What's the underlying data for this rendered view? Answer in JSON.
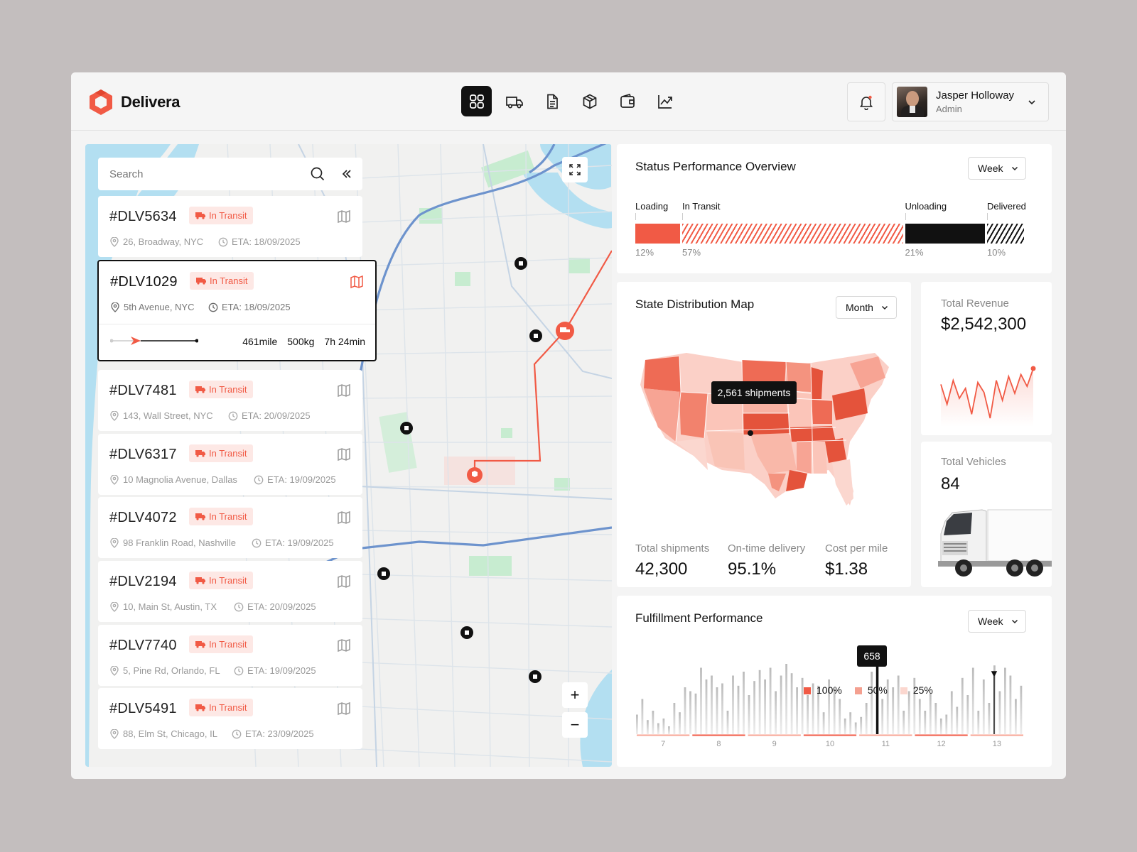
{
  "app": {
    "name": "Delivera"
  },
  "nav": {
    "items": [
      "dashboard-icon",
      "truck-icon",
      "document-icon",
      "package-icon",
      "wallet-icon",
      "chart-icon"
    ],
    "active": 0
  },
  "user": {
    "name": "Jasper Holloway",
    "role": "Admin"
  },
  "search": {
    "placeholder": "Search"
  },
  "deliveries": [
    {
      "id": "#DLV5634",
      "status": "In Transit",
      "address": "26, Broadway, NYC",
      "eta": "ETA: 18/09/2025"
    },
    {
      "id": "#DLV1029",
      "status": "In Transit",
      "address": "5th Avenue, NYC",
      "eta": "ETA: 18/09/2025",
      "distance": "461mile",
      "weight": "500kg",
      "duration": "7h 24min",
      "progress": 0.35
    },
    {
      "id": "#DLV7481",
      "status": "In Transit",
      "address": "143, Wall Street, NYC",
      "eta": "ETA: 20/09/2025"
    },
    {
      "id": "#DLV6317",
      "status": "In Transit",
      "address": "10 Magnolia Avenue, Dallas",
      "eta": "ETA: 19/09/2025"
    },
    {
      "id": "#DLV4072",
      "status": "In Transit",
      "address": "98 Franklin Road, Nashville",
      "eta": "ETA: 19/09/2025"
    },
    {
      "id": "#DLV2194",
      "status": "In Transit",
      "address": "10, Main St, Austin, TX",
      "eta": "ETA: 20/09/2025"
    },
    {
      "id": "#DLV7740",
      "status": "In Transit",
      "address": "5, Pine Rd, Orlando, FL",
      "eta": "ETA: 19/09/2025"
    },
    {
      "id": "#DLV5491",
      "status": "In Transit",
      "address": "88, Elm St, Chicago, IL",
      "eta": "ETA: 23/09/2025"
    }
  ],
  "status_overview": {
    "title": "Status Performance Overview",
    "period": "Week",
    "stages": [
      {
        "label": "Loading",
        "pct": "12%",
        "value": 12,
        "color": "#f15a45"
      },
      {
        "label": "In Transit",
        "pct": "57%",
        "value": 57,
        "color": "#f15a45"
      },
      {
        "label": "Unloading",
        "pct": "21%",
        "value": 21,
        "color": "#111111"
      },
      {
        "label": "Delivered",
        "pct": "10%",
        "value": 10,
        "color": "#111111"
      }
    ]
  },
  "state_map": {
    "title": "State Distribution Map",
    "period": "Month",
    "tooltip": "2,561 shipments",
    "kpis": [
      {
        "label": "Total shipments",
        "value": "42,300"
      },
      {
        "label": "On-time delivery",
        "value": "95.1%"
      },
      {
        "label": "Cost per mile",
        "value": "$1.38"
      }
    ]
  },
  "revenue": {
    "label": "Total Revenue",
    "value": "$2,542,300",
    "trend": [
      42,
      22,
      46,
      28,
      38,
      12,
      44,
      34,
      8,
      46,
      26,
      50,
      33,
      52,
      40,
      58
    ]
  },
  "vehicles": {
    "label": "Total Vehicles",
    "value": "84"
  },
  "fulfillment": {
    "title": "Fulfillment Performance",
    "period": "Week",
    "legend": [
      "100%",
      "50%",
      "25%"
    ],
    "legend_colors": [
      "#f15a45",
      "#f4a090",
      "#fbd7cf"
    ],
    "tooltip": "658",
    "highlight_index": 45,
    "x_labels": [
      "7",
      "8",
      "9",
      "10",
      "11",
      "12",
      "13"
    ],
    "bars": [
      0.25,
      0.45,
      0.18,
      0.3,
      0.14,
      0.2,
      0.1,
      0.4,
      0.28,
      0.6,
      0.55,
      0.52,
      0.85,
      0.7,
      0.75,
      0.6,
      0.65,
      0.3,
      0.75,
      0.62,
      0.8,
      0.5,
      0.68,
      0.82,
      0.7,
      0.85,
      0.55,
      0.75,
      0.9,
      0.78,
      0.6,
      0.72,
      0.5,
      0.65,
      0.62,
      0.28,
      0.7,
      0.58,
      0.45,
      0.2,
      0.28,
      0.15,
      0.22,
      0.4,
      0.8,
      1.0,
      0.45,
      0.7,
      0.6,
      0.75,
      0.3,
      0.55,
      0.72,
      0.45,
      0.3,
      0.52,
      0.4,
      0.2,
      0.25,
      0.55,
      0.35,
      0.72,
      0.5,
      0.85,
      0.3,
      0.7,
      0.4,
      0.88,
      0.55,
      0.85,
      0.75,
      0.45,
      0.62
    ]
  },
  "map": {
    "zoom_in": "+",
    "zoom_out": "−"
  }
}
